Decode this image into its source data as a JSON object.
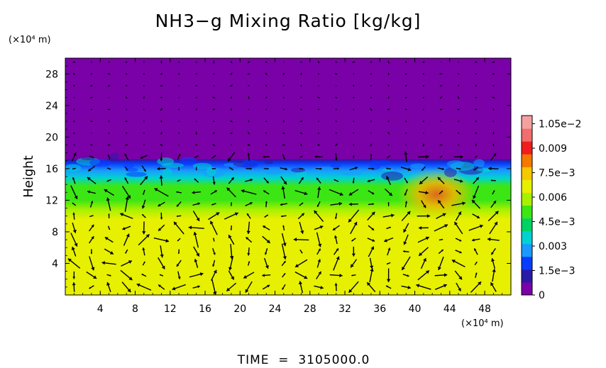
{
  "chart_data": {
    "type": "heatmap",
    "title": "NH3−g Mixing Ratio [kg/kg]",
    "ylabel": "Height",
    "xunit": "(×10⁴ m)",
    "yunit": "(×10⁴ m)",
    "footer": "TIME  =  3105000.0",
    "xlim": [
      0,
      51
    ],
    "ylim": [
      0,
      30
    ],
    "x_ticks": [
      "4",
      "8",
      "12",
      "16",
      "20",
      "24",
      "28",
      "32",
      "36",
      "40",
      "44",
      "48"
    ],
    "x_tick_values": [
      4,
      8,
      12,
      16,
      20,
      24,
      28,
      32,
      36,
      40,
      44,
      48
    ],
    "y_ticks": [
      "4",
      "8",
      "12",
      "16",
      "20",
      "24",
      "28"
    ],
    "y_tick_values": [
      4,
      8,
      12,
      16,
      20,
      24,
      28
    ],
    "colorbar": {
      "min": 0,
      "max": 0.011,
      "labels": [
        "0",
        "1.5e−3",
        "0.003",
        "4.5e−3",
        "0.006",
        "7.5e−3",
        "0.009",
        "1.05e−2"
      ],
      "values": [
        0,
        0.0015,
        0.003,
        0.0045,
        0.006,
        0.0075,
        0.009,
        0.0105
      ],
      "colors": [
        "#7a00a8",
        "#2a1aa8",
        "#0a3cff",
        "#1a9aff",
        "#00d2d2",
        "#00d264",
        "#3ce614",
        "#a8f000",
        "#e6f000",
        "#f5c800",
        "#f57800",
        "#f01e1e",
        "#f06e6e",
        "#f5a0a0"
      ]
    },
    "field_regions": [
      {
        "name": "upper",
        "y_range": [
          17,
          30
        ],
        "value": 0.0
      },
      {
        "name": "interface",
        "y_range": [
          15,
          17.5
        ],
        "value": 0.003
      },
      {
        "name": "middle",
        "y_range": [
          10,
          15
        ],
        "value": 0.0062
      },
      {
        "name": "lower",
        "y_range": [
          0,
          10
        ],
        "value": 0.0078
      },
      {
        "name": "enhanced-patch",
        "x_range": [
          38,
          47
        ],
        "y_range": [
          9.5,
          16
        ],
        "value": 0.0092
      }
    ]
  }
}
